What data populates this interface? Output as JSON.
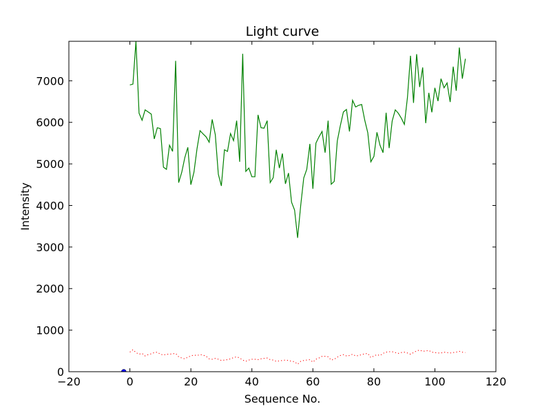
{
  "chart_data": {
    "type": "line",
    "title": "Light curve",
    "xlabel": "Sequence No.",
    "ylabel": "Intensity",
    "xlim": [
      -20,
      120
    ],
    "ylim": [
      0,
      7950
    ],
    "xticks": [
      -20,
      0,
      20,
      40,
      60,
      80,
      100,
      120
    ],
    "yticks": [
      0,
      1000,
      2000,
      3000,
      4000,
      5000,
      6000,
      7000
    ],
    "grid": false,
    "legend": "none",
    "series": [
      {
        "color": "#008000",
        "style": "solid",
        "x": [
          0,
          1,
          2,
          3,
          4,
          5,
          6,
          7,
          8,
          9,
          10,
          11,
          12,
          13,
          14,
          15,
          16,
          17,
          18,
          19,
          20,
          21,
          22,
          23,
          24,
          25,
          26,
          27,
          28,
          29,
          30,
          31,
          32,
          33,
          34,
          35,
          36,
          37,
          38,
          39,
          40,
          41,
          42,
          43,
          44,
          45,
          46,
          47,
          48,
          49,
          50,
          51,
          52,
          53,
          54,
          55,
          56,
          57,
          58,
          59,
          60,
          61,
          62,
          63,
          64,
          65,
          66,
          67,
          68,
          69,
          70,
          71,
          72,
          73,
          74,
          75,
          76,
          77,
          78,
          79,
          80,
          81,
          82,
          83,
          84,
          85,
          86,
          87,
          88,
          89,
          90,
          91,
          92,
          93,
          94,
          95,
          96,
          97,
          98,
          99,
          100,
          101,
          102,
          103,
          104,
          105,
          106,
          107,
          108,
          109,
          110
        ],
        "y": [
          6900,
          6920,
          7950,
          6220,
          6050,
          6300,
          6250,
          6200,
          5600,
          5870,
          5850,
          4920,
          4870,
          5450,
          5300,
          7480,
          4550,
          4800,
          5150,
          5400,
          4500,
          4800,
          5360,
          5800,
          5720,
          5650,
          5520,
          6070,
          5700,
          4750,
          4470,
          5340,
          5300,
          5730,
          5560,
          6040,
          5050,
          7650,
          4820,
          4900,
          4690,
          4690,
          6180,
          5870,
          5860,
          6040,
          4550,
          4670,
          5340,
          4900,
          5250,
          4520,
          4780,
          4080,
          3890,
          3220,
          4000,
          4660,
          4870,
          5480,
          4400,
          5500,
          5650,
          5780,
          5270,
          6040,
          4510,
          4580,
          5550,
          5920,
          6250,
          6310,
          5780,
          6530,
          6370,
          6410,
          6430,
          6050,
          5750,
          5050,
          5180,
          5760,
          5450,
          5270,
          6230,
          5380,
          6030,
          6300,
          6220,
          6100,
          5950,
          6600,
          7600,
          6470,
          7640,
          6850,
          7320,
          5980,
          6710,
          6240,
          6830,
          6510,
          7050,
          6830,
          6950,
          6490,
          7340,
          6760,
          7800,
          7050,
          7530
        ]
      },
      {
        "color": "#ff0000",
        "style": "dotted",
        "x": [
          0,
          1,
          2,
          3,
          4,
          5,
          6,
          7,
          8,
          9,
          10,
          11,
          12,
          13,
          14,
          15,
          16,
          17,
          18,
          19,
          20,
          21,
          22,
          23,
          24,
          25,
          26,
          27,
          28,
          29,
          30,
          31,
          32,
          33,
          34,
          35,
          36,
          37,
          38,
          39,
          40,
          41,
          42,
          43,
          44,
          45,
          46,
          47,
          48,
          49,
          50,
          51,
          52,
          53,
          54,
          55,
          56,
          57,
          58,
          59,
          60,
          61,
          62,
          63,
          64,
          65,
          66,
          67,
          68,
          69,
          70,
          71,
          72,
          73,
          74,
          75,
          76,
          77,
          78,
          79,
          80,
          81,
          82,
          83,
          84,
          85,
          86,
          87,
          88,
          89,
          90,
          91,
          92,
          93,
          94,
          95,
          96,
          97,
          98,
          99,
          100,
          101,
          102,
          103,
          104,
          105,
          106,
          107,
          108,
          109,
          110
        ],
        "y": [
          470,
          530,
          460,
          420,
          440,
          380,
          410,
          430,
          460,
          470,
          420,
          400,
          420,
          420,
          430,
          440,
          360,
          330,
          310,
          350,
          380,
          400,
          390,
          410,
          400,
          370,
          310,
          300,
          320,
          300,
          270,
          280,
          290,
          310,
          340,
          360,
          330,
          280,
          250,
          280,
          300,
          300,
          290,
          310,
          320,
          330,
          290,
          280,
          250,
          260,
          270,
          280,
          270,
          250,
          240,
          180,
          250,
          270,
          280,
          290,
          230,
          300,
          330,
          370,
          370,
          360,
          280,
          300,
          350,
          390,
          410,
          380,
          390,
          420,
          380,
          390,
          410,
          430,
          440,
          340,
          380,
          410,
          390,
          440,
          470,
          480,
          480,
          460,
          440,
          460,
          470,
          450,
          420,
          460,
          500,
          520,
          490,
          500,
          510,
          470,
          460,
          450,
          450,
          470,
          460,
          450,
          460,
          470,
          490,
          470,
          460
        ]
      },
      {
        "color": "#0000ff",
        "style": "marker",
        "x": [
          -2
        ],
        "y": [
          0
        ]
      }
    ]
  }
}
